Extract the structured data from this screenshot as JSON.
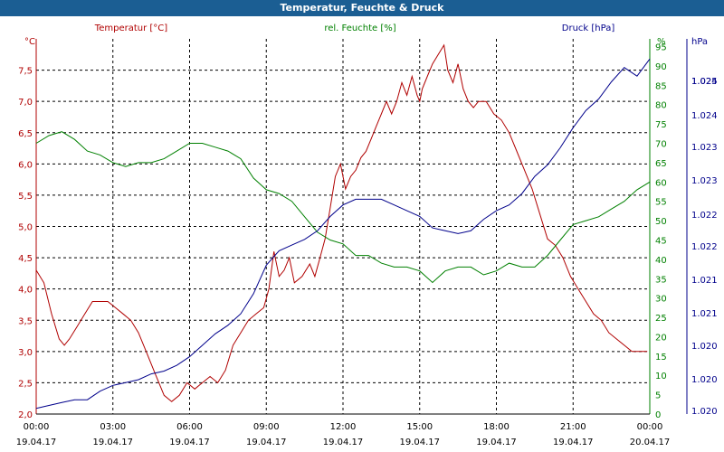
{
  "window": {
    "title": "Temperatur, Feuchte & Druck"
  },
  "colors": {
    "temperature": "#b00000",
    "humidity": "#008000",
    "pressure": "#00008b",
    "grid": "#000000",
    "titlebar": "#1b5e93"
  },
  "chart_data": {
    "type": "line",
    "title": "Temperatur, Feuchte & Druck",
    "grid": true,
    "x_ticks": [
      {
        "time": "00:00",
        "date": "19.04.17"
      },
      {
        "time": "03:00",
        "date": "19.04.17"
      },
      {
        "time": "06:00",
        "date": "19.04.17"
      },
      {
        "time": "09:00",
        "date": "19.04.17"
      },
      {
        "time": "12:00",
        "date": "19.04.17"
      },
      {
        "time": "15:00",
        "date": "19.04.17"
      },
      {
        "time": "18:00",
        "date": "19.04.17"
      },
      {
        "time": "21:00",
        "date": "19.04.17"
      },
      {
        "time": "00:00",
        "date": "20.04.17"
      }
    ],
    "xlim": [
      0,
      24
    ],
    "axes": {
      "temperature": {
        "label": "Temperatur [°C]",
        "unit": "°C",
        "ylim": [
          2.0,
          8.0
        ],
        "step": 0.5,
        "ticks": [
          "2,0",
          "2,5",
          "3,0",
          "3,5",
          "4,0",
          "4,5",
          "5,0",
          "5,5",
          "6,0",
          "6,5",
          "7,0",
          "7,5"
        ]
      },
      "humidity": {
        "label": "rel. Feuchte [%]",
        "unit": "%",
        "ylim": [
          0,
          97
        ],
        "step": 5,
        "ticks": [
          "0",
          "5",
          "10",
          "15",
          "20",
          "25",
          "30",
          "35",
          "40",
          "45",
          "50",
          "55",
          "60",
          "65",
          "70",
          "75",
          "80",
          "85",
          "90",
          "95"
        ]
      },
      "pressure": {
        "label": "Druck [hPa]",
        "unit": "hPa",
        "ticks": [
          "1.020",
          "1.020",
          "1.020",
          "1.021",
          "1.021",
          "1.022",
          "1.022",
          "1.023",
          "1.023",
          "1.024",
          "1.024",
          "1.025"
        ]
      }
    },
    "series": [
      {
        "name": "Temperatur [°C]",
        "axis": "temperature",
        "x": [
          0,
          0.3,
          0.6,
          0.9,
          1.1,
          1.3,
          1.6,
          1.9,
          2.2,
          2.5,
          2.8,
          3.1,
          3.4,
          3.7,
          4.0,
          4.3,
          4.6,
          5.0,
          5.3,
          5.6,
          5.9,
          6.2,
          6.5,
          6.8,
          7.1,
          7.4,
          7.7,
          8.0,
          8.3,
          8.6,
          8.9,
          9.1,
          9.3,
          9.5,
          9.7,
          9.9,
          10.1,
          10.4,
          10.7,
          10.9,
          11.1,
          11.3,
          11.5,
          11.7,
          11.9,
          12.1,
          12.3,
          12.5,
          12.7,
          12.9,
          13.1,
          13.3,
          13.5,
          13.7,
          13.9,
          14.1,
          14.3,
          14.5,
          14.7,
          14.9,
          15.0,
          15.1,
          15.3,
          15.5,
          15.8,
          15.95,
          16.1,
          16.3,
          16.5,
          16.7,
          16.9,
          17.1,
          17.3,
          17.6,
          17.9,
          18.2,
          18.5,
          18.8,
          19.1,
          19.4,
          19.7,
          20.0,
          20.3,
          20.6,
          20.9,
          21.2,
          21.5,
          21.8,
          22.1,
          22.4,
          22.7,
          23.0,
          23.3,
          23.6,
          23.9
        ],
        "values": [
          4.3,
          4.1,
          3.6,
          3.2,
          3.1,
          3.2,
          3.4,
          3.6,
          3.8,
          3.8,
          3.8,
          3.7,
          3.6,
          3.5,
          3.3,
          3.0,
          2.7,
          2.3,
          2.2,
          2.3,
          2.5,
          2.4,
          2.5,
          2.6,
          2.5,
          2.7,
          3.1,
          3.3,
          3.5,
          3.6,
          3.7,
          4.0,
          4.6,
          4.2,
          4.3,
          4.5,
          4.1,
          4.2,
          4.4,
          4.2,
          4.5,
          4.8,
          5.3,
          5.8,
          6.0,
          5.6,
          5.8,
          5.9,
          6.1,
          6.2,
          6.4,
          6.6,
          6.8,
          7.0,
          6.8,
          7.0,
          7.3,
          7.1,
          7.4,
          7.1,
          7.0,
          7.2,
          7.4,
          7.6,
          7.8,
          7.9,
          7.5,
          7.3,
          7.6,
          7.2,
          7.0,
          6.9,
          7.0,
          7.0,
          6.8,
          6.7,
          6.5,
          6.2,
          5.9,
          5.6,
          5.2,
          4.8,
          4.7,
          4.5,
          4.2,
          4.0,
          3.8,
          3.6,
          3.5,
          3.3,
          3.2,
          3.1,
          3.0,
          3.0,
          3.0
        ]
      },
      {
        "name": "rel. Feuchte [%]",
        "axis": "humidity",
        "x": [
          0,
          0.5,
          1.0,
          1.5,
          2.0,
          2.5,
          3.0,
          3.5,
          4.0,
          4.5,
          5.0,
          5.5,
          6.0,
          6.5,
          7.0,
          7.5,
          8.0,
          8.5,
          9.0,
          9.5,
          10.0,
          10.5,
          11.0,
          11.5,
          12.0,
          12.5,
          13.0,
          13.5,
          14.0,
          14.5,
          15.0,
          15.5,
          16.0,
          16.5,
          17.0,
          17.5,
          18.0,
          18.5,
          19.0,
          19.5,
          20.0,
          20.5,
          21.0,
          21.5,
          22.0,
          22.5,
          23.0,
          23.5,
          24.0
        ],
        "values": [
          70,
          72,
          73,
          71,
          68,
          67,
          65,
          64,
          65,
          65,
          66,
          68,
          70,
          70,
          69,
          68,
          66,
          61,
          58,
          57,
          55,
          51,
          47,
          45,
          44,
          41,
          41,
          39,
          38,
          38,
          37,
          34,
          37,
          38,
          38,
          36,
          37,
          39,
          38,
          38,
          41,
          45,
          49,
          50,
          51,
          53,
          55,
          58,
          60
        ]
      },
      {
        "name": "Druck [hPa]",
        "axis": "pressure",
        "x": [
          0,
          0.5,
          1.0,
          1.5,
          2.0,
          2.5,
          3.0,
          3.5,
          4.0,
          4.5,
          5.0,
          5.5,
          6.0,
          6.5,
          7.0,
          7.5,
          8.0,
          8.5,
          9.0,
          9.5,
          10.0,
          10.5,
          11.0,
          11.5,
          12.0,
          12.5,
          13.0,
          13.5,
          14.0,
          14.5,
          15.0,
          15.5,
          16.0,
          16.5,
          17.0,
          17.5,
          18.0,
          18.5,
          19.0,
          19.5,
          20.0,
          20.5,
          21.0,
          21.5,
          22.0,
          22.5,
          23.0,
          23.5,
          24.0
        ],
        "values": [
          2,
          3,
          4,
          5,
          5,
          8,
          10,
          11,
          12,
          14,
          15,
          17,
          20,
          24,
          28,
          31,
          35,
          42,
          52,
          57,
          59,
          61,
          64,
          69,
          73,
          75,
          75,
          75,
          73,
          71,
          69,
          65,
          64,
          63,
          64,
          68,
          71,
          73,
          77,
          83,
          87,
          93,
          100,
          106,
          110,
          116,
          121,
          118,
          124
        ]
      }
    ]
  }
}
